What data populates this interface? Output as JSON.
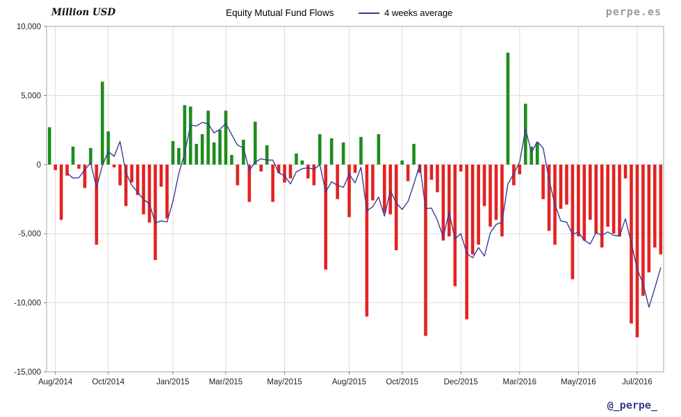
{
  "header": {
    "y_axis_title": "Million USD",
    "title": "Equity Mutual Fund Flows",
    "legend_label": "4 weeks average",
    "watermark": "perpe.es"
  },
  "footer": {
    "handle": "@_perpe_"
  },
  "chart_data": {
    "type": "bar",
    "overlay": "line",
    "title": "Equity Mutual Fund Flows",
    "unit": "Million USD",
    "legend": [
      "4 weeks average"
    ],
    "avg_window": 4,
    "ylim": [
      -15000,
      10000
    ],
    "y_step": 5000,
    "grid": true,
    "values": [
      2700,
      -400,
      -4000,
      -800,
      1300,
      -300,
      -1700,
      1200,
      -5800,
      6000,
      2400,
      -200,
      -1500,
      -3000,
      -1300,
      -2200,
      -3600,
      -4200,
      -6900,
      -1600,
      -3900,
      1700,
      1200,
      4300,
      4200,
      1500,
      2200,
      3900,
      1600,
      2500,
      3900,
      700,
      -1500,
      1800,
      -2700,
      3100,
      -500,
      1400,
      -2700,
      -600,
      -1300,
      -1000,
      800,
      300,
      -1000,
      -1500,
      2200,
      -7600,
      1900,
      -2500,
      1600,
      -3800,
      -600,
      2000,
      -11000,
      -2600,
      2200,
      -3500,
      -3600,
      -6200,
      300,
      -1200,
      1500,
      -600,
      -12400,
      -1100,
      -2000,
      -5500,
      -5200,
      -8800,
      -500,
      -11200,
      -6500,
      -5800,
      -3000,
      -4500,
      -4000,
      -5200,
      8100,
      -1500,
      -700,
      4400,
      1300,
      1600,
      -2500,
      -4800,
      -5800,
      -3200,
      -2900,
      -8300,
      -5200,
      -5500,
      -4000,
      -5000,
      -6000,
      -4500,
      -5000,
      -5200,
      -1000,
      -11500,
      -12500,
      -9500,
      -7800,
      -6000,
      -6500
    ],
    "x_ticks": [
      {
        "index": 1,
        "label": "Aug/2014"
      },
      {
        "index": 10,
        "label": "Oct/2014"
      },
      {
        "index": 21,
        "label": "Jan/2015"
      },
      {
        "index": 30,
        "label": "Mar/2015"
      },
      {
        "index": 40,
        "label": "May/2015"
      },
      {
        "index": 51,
        "label": "Aug/2015"
      },
      {
        "index": 60,
        "label": "Oct/2015"
      },
      {
        "index": 70,
        "label": "Dec/2015"
      },
      {
        "index": 80,
        "label": "Mar/2016"
      },
      {
        "index": 90,
        "label": "May/2016"
      },
      {
        "index": 100,
        "label": "Jul/2016"
      }
    ],
    "colors": {
      "positive": "#1e8c1e",
      "negative": "#e32222",
      "line": "#3a3a96",
      "grid": "#dcdcdc",
      "frame": "#a6a6a6",
      "tick": "#808080"
    }
  }
}
